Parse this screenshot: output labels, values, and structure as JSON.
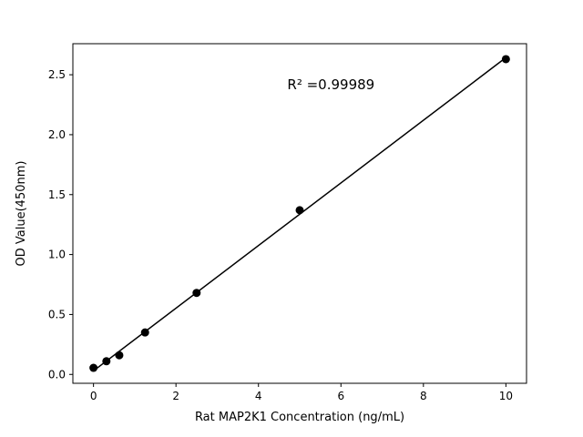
{
  "figure": {
    "background": "#ffffff"
  },
  "chart_data": {
    "type": "scatter",
    "title": "",
    "xlabel": "Rat MAP2K1 Concentration (ng/mL)",
    "ylabel": "OD Value(450nm)",
    "x": [
      0,
      0.313,
      0.625,
      1.25,
      2.5,
      5,
      10
    ],
    "y": [
      0.055,
      0.11,
      0.16,
      0.35,
      0.68,
      1.37,
      2.63
    ],
    "fit_line": true,
    "annotation": {
      "text": "R² =0.99989",
      "x": 4.7,
      "y": 2.38,
      "font_size": 15
    },
    "xlim": [
      -0.5,
      10.5
    ],
    "ylim": [
      -0.074,
      2.759
    ],
    "xticks": [
      0,
      2,
      4,
      6,
      8,
      10
    ],
    "xtick_labels": [
      "0",
      "2",
      "4",
      "6",
      "8",
      "10"
    ],
    "yticks": [
      0.0,
      0.5,
      1.0,
      1.5,
      2.0,
      2.5
    ],
    "ytick_labels": [
      "0.0",
      "0.5",
      "1.0",
      "1.5",
      "2.0",
      "2.5"
    ],
    "grid": false,
    "legend": "none",
    "marker_color": "#000000",
    "line_color": "#000000",
    "marker_radius": 4.5
  }
}
